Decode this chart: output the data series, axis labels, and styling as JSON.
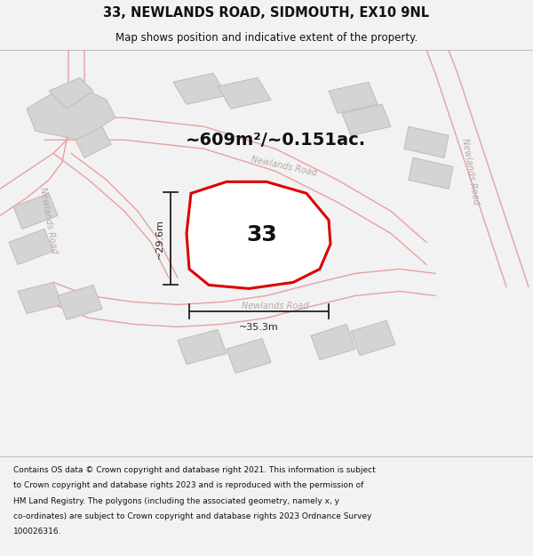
{
  "title_line1": "33, NEWLANDS ROAD, SIDMOUTH, EX10 9NL",
  "title_line2": "Map shows position and indicative extent of the property.",
  "footer_lines": [
    "Contains OS data © Crown copyright and database right 2021. This information is subject",
    "to Crown copyright and database rights 2023 and is reproduced with the permission of",
    "HM Land Registry. The polygons (including the associated geometry, namely x, y",
    "co-ordinates) are subject to Crown copyright and database rights 2023 Ordnance Survey",
    "100026316."
  ],
  "area_label": "~609m²/~0.151ac.",
  "number_label": "33",
  "dim_width": "~35.3m",
  "dim_height": "~29.6m",
  "bg_color": "#f2f2f2",
  "map_bg": "#eeecec",
  "plot_outline_color": "#dd0000",
  "plot_fill_color": "#ffffff",
  "road_line_color": "#e8a0a0",
  "road_text_color": "#b8a8a8",
  "building_fill": "#d4d4d4",
  "building_outline": "#c8bcbc",
  "dim_line_color": "#222222",
  "title_color": "#111111",
  "footer_color": "#111111",
  "title_fontsize": 10.5,
  "subtitle_fontsize": 8.5,
  "footer_fontsize": 6.5,
  "area_fontsize": 14,
  "number_fontsize": 18,
  "dim_fontsize": 8,
  "road_fontsize": 7
}
